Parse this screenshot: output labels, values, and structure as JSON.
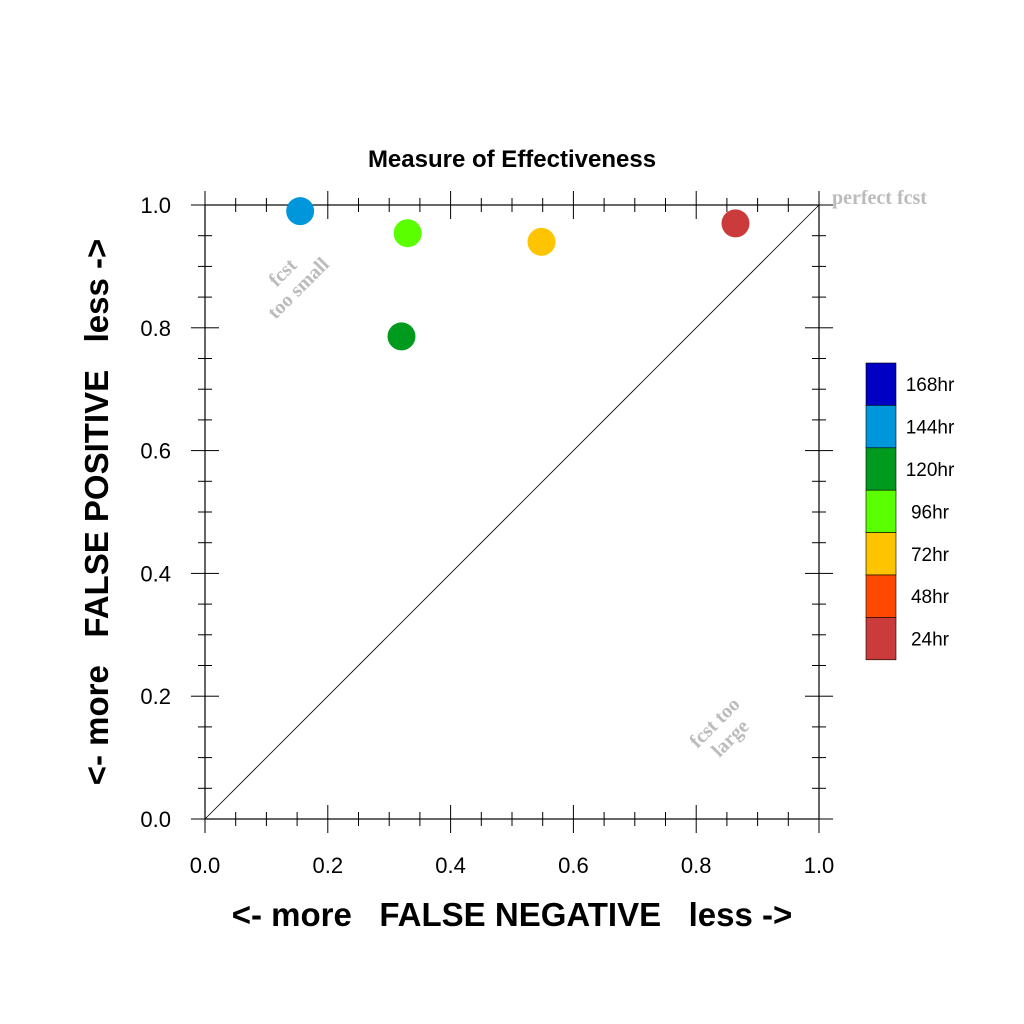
{
  "chart_data": {
    "type": "scatter",
    "title": "Measure of Effectiveness",
    "xlabel": "<- more   FALSE NEGATIVE   less ->",
    "ylabel": "<- more   FALSE POSITIVE   less ->",
    "xlim": [
      0.0,
      1.0
    ],
    "ylim": [
      0.0,
      1.0
    ],
    "x_ticks": [
      "0.0",
      "0.2",
      "0.4",
      "0.6",
      "0.8",
      "1.0"
    ],
    "y_ticks": [
      "0.0",
      "0.2",
      "0.4",
      "0.6",
      "0.8",
      "1.0"
    ],
    "grid": false,
    "diagonal_line": true,
    "legend_placement": "right",
    "legend": [
      {
        "label": "168hr",
        "color": "#0000c4"
      },
      {
        "label": "144hr",
        "color": "#0096dc"
      },
      {
        "label": "120hr",
        "color": "#009a1e"
      },
      {
        "label": "96hr",
        "color": "#5aff00"
      },
      {
        "label": "72hr",
        "color": "#ffc400"
      },
      {
        "label": "48hr",
        "color": "#ff4800"
      },
      {
        "label": "24hr",
        "color": "#cc3b3b"
      }
    ],
    "points": [
      {
        "lead": "144hr",
        "x": 0.155,
        "y": 0.99,
        "color": "#0096dc"
      },
      {
        "lead": "120hr",
        "x": 0.32,
        "y": 0.786,
        "color": "#009a1e"
      },
      {
        "lead": "96hr",
        "x": 0.33,
        "y": 0.954,
        "color": "#5aff00"
      },
      {
        "lead": "72hr",
        "x": 0.548,
        "y": 0.94,
        "color": "#ffc400"
      },
      {
        "lead": "24hr",
        "x": 0.864,
        "y": 0.97,
        "color": "#cc3b3b"
      }
    ],
    "annotations": {
      "perfect": "perfect fcst",
      "too_small_1": "fcst",
      "too_small_2": "too small",
      "too_large_1": "fcst too",
      "too_large_2": "large"
    },
    "annotation_color": "#bbbbbb"
  }
}
